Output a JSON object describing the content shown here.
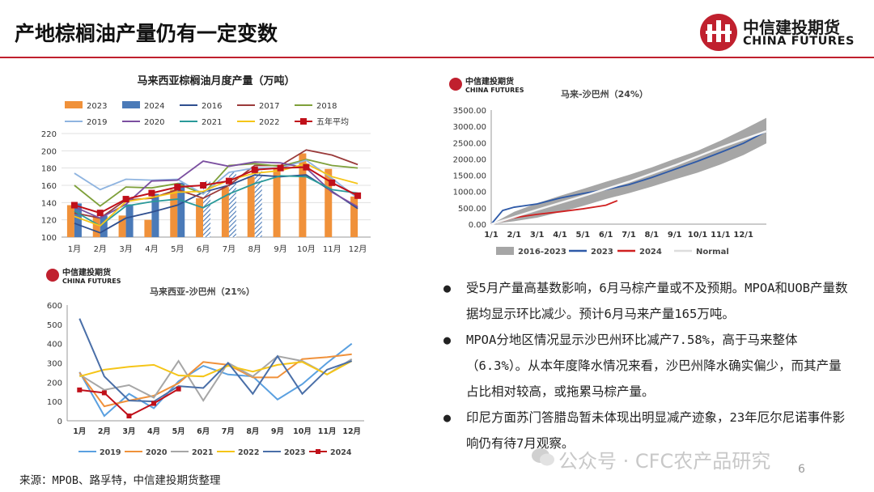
{
  "slide": {
    "title": "产地棕榈油产量仍有一定变数",
    "source": "来源：MPOB、路孚特，中信建投期货整理",
    "watermark": "公众号 · CFC农产品研究",
    "page_number": "6",
    "accent_color": "#c0202e"
  },
  "logo": {
    "cn": "中信建投期货",
    "en": "CHINA FUTURES"
  },
  "bullets": [
    "受5月产量高基数影响，6月马棕产量或不及预期。MPOA和UOB产量数据均显示环比减少。预计6月马来产量165万吨。",
    "MPOA分地区情况显示沙巴州环比减产7.58%，高于马来整体（6.3%）。从本年度降水情况来看，沙巴州降水确实偏少，而其产量占比相对较高，或拖累马棕产量。",
    "印尼方面苏门答腊岛暂未体现出明显减产迹象，23年厄尔尼诺事件影响仍有待7月观察。"
  ],
  "chart_data": [
    {
      "type": "bar",
      "title": "马来西亚棕榈油月度产量（万吨）",
      "categories": [
        "1月",
        "2月",
        "3月",
        "4月",
        "5月",
        "6月",
        "7月",
        "8月",
        "9月",
        "10月",
        "11月",
        "12月"
      ],
      "ylim": [
        100,
        220
      ],
      "yticks": [
        100,
        120,
        140,
        160,
        180,
        200,
        220
      ],
      "legend_position": "top",
      "bars": [
        {
          "name": "2023",
          "color": "#f0913a",
          "values": [
            137,
            123,
            125,
            120,
            155,
            145,
            158,
            170,
            180,
            197,
            179,
            147
          ]
        },
        {
          "name": "2024",
          "color": "#4a7ab8",
          "values": [
            139,
            125,
            138,
            150,
            163,
            165,
            175,
            178,
            null,
            null,
            null,
            null
          ],
          "hatched_from_index": 5
        }
      ],
      "series": [
        {
          "name": "2016",
          "color": "#2f4f8f",
          "values": [
            116,
            105,
            122,
            129,
            137,
            152,
            160,
            172,
            170,
            172,
            153,
            133
          ]
        },
        {
          "name": "2017",
          "color": "#9a3a3a",
          "values": [
            128,
            122,
            143,
            145,
            155,
            145,
            160,
            183,
            183,
            201,
            195,
            184
          ]
        },
        {
          "name": "2018",
          "color": "#7ea03a",
          "values": [
            160,
            136,
            158,
            157,
            162,
            150,
            183,
            185,
            182,
            190,
            183,
            180
          ]
        },
        {
          "name": "2019",
          "color": "#8fb4e0",
          "values": [
            174,
            155,
            167,
            166,
            167,
            150,
            175,
            180,
            180,
            189,
            168,
            145
          ]
        },
        {
          "name": "2020",
          "color": "#7b4fa0",
          "values": [
            135,
            122,
            138,
            165,
            166,
            188,
            182,
            187,
            186,
            180,
            152,
            135
          ]
        },
        {
          "name": "2021",
          "color": "#2a9a9a",
          "values": [
            130,
            113,
            136,
            141,
            144,
            134,
            150,
            162,
            171,
            170,
            155,
            151
          ]
        },
        {
          "name": "2022",
          "color": "#f5c518",
          "values": [
            124,
            113,
            141,
            146,
            152,
            153,
            166,
            174,
            177,
            185,
            170,
            162
          ]
        },
        {
          "name": "五年平均",
          "color": "#c0101a",
          "values": [
            137,
            128,
            144,
            151,
            158,
            160,
            165,
            178,
            180,
            181,
            163,
            148
          ],
          "markers": true
        }
      ]
    },
    {
      "type": "area",
      "title": "马来-沙巴州（24%）",
      "xticks": [
        "1/1",
        "2/1",
        "3/1",
        "4/1",
        "5/1",
        "6/1",
        "7/1",
        "8/1",
        "9/1",
        "10/1",
        "11/1",
        "12/1"
      ],
      "ylim": [
        0,
        3500
      ],
      "yticks": [
        "0.00",
        "500.00",
        "1000.00",
        "1500.00",
        "2000.00",
        "2500.00",
        "3000.00",
        "3500.00"
      ],
      "legend_position": "bottom",
      "band": {
        "name": "2016-2023",
        "color": "#a6a6a6",
        "x": [
          0,
          1,
          2,
          3,
          4,
          5,
          6,
          7,
          8,
          9,
          10,
          11,
          12
        ],
        "low": [
          0,
          90,
          200,
          370,
          560,
          770,
          950,
          1150,
          1370,
          1580,
          1830,
          2120,
          2480
        ],
        "high": [
          0,
          380,
          640,
          870,
          1080,
          1300,
          1510,
          1740,
          2000,
          2250,
          2560,
          2900,
          3260
        ]
      },
      "series": [
        {
          "name": "2023",
          "color": "#2e5aa8",
          "x": [
            0,
            0.5,
            1,
            2,
            3,
            4,
            5,
            6,
            7,
            8,
            9,
            10,
            11,
            12
          ],
          "y": [
            0,
            420,
            520,
            620,
            800,
            940,
            1060,
            1210,
            1430,
            1680,
            1930,
            2200,
            2480,
            2850
          ]
        },
        {
          "name": "2024",
          "color": "#d02020",
          "x": [
            0,
            0.5,
            1,
            2,
            3,
            4,
            5,
            5.5
          ],
          "y": [
            0,
            100,
            200,
            300,
            380,
            470,
            580,
            720
          ]
        },
        {
          "name": "Normal",
          "color": "#f4f4f4",
          "x": [
            0,
            2,
            4,
            6,
            8,
            10,
            12
          ],
          "y": [
            0,
            440,
            860,
            1300,
            1800,
            2350,
            2850
          ]
        }
      ]
    },
    {
      "type": "line",
      "title": "马来西亚-沙巴州（21%）",
      "categories": [
        "1月",
        "2月",
        "3月",
        "4月",
        "5月",
        "6月",
        "7月",
        "8月",
        "9月",
        "10月",
        "11月",
        "12月"
      ],
      "ylim": [
        0,
        600
      ],
      "yticks": [
        0,
        100,
        200,
        300,
        400,
        500,
        600
      ],
      "legend_position": "bottom",
      "series": [
        {
          "name": "2019",
          "color": "#5aa0e0",
          "values": [
            253,
            25,
            140,
            65,
            205,
            285,
            240,
            230,
            110,
            190,
            300,
            400
          ]
        },
        {
          "name": "2020",
          "color": "#f0913a",
          "values": [
            250,
            75,
            105,
            130,
            195,
            305,
            290,
            225,
            225,
            320,
            330,
            345
          ]
        },
        {
          "name": "2021",
          "color": "#a6a6a6",
          "values": [
            240,
            160,
            185,
            120,
            310,
            105,
            300,
            230,
            335,
            310,
            240,
            320
          ]
        },
        {
          "name": "2022",
          "color": "#f5c518",
          "values": [
            230,
            265,
            280,
            290,
            235,
            230,
            285,
            255,
            290,
            305,
            240,
            310
          ]
        },
        {
          "name": "2023",
          "color": "#4a6fa8",
          "values": [
            530,
            230,
            105,
            100,
            180,
            170,
            300,
            140,
            335,
            140,
            265,
            310
          ]
        },
        {
          "name": "2024",
          "color": "#c0101a",
          "values": [
            160,
            145,
            25,
            90,
            165,
            null,
            null,
            null,
            null,
            null,
            null,
            null
          ],
          "markers": true
        }
      ]
    }
  ]
}
